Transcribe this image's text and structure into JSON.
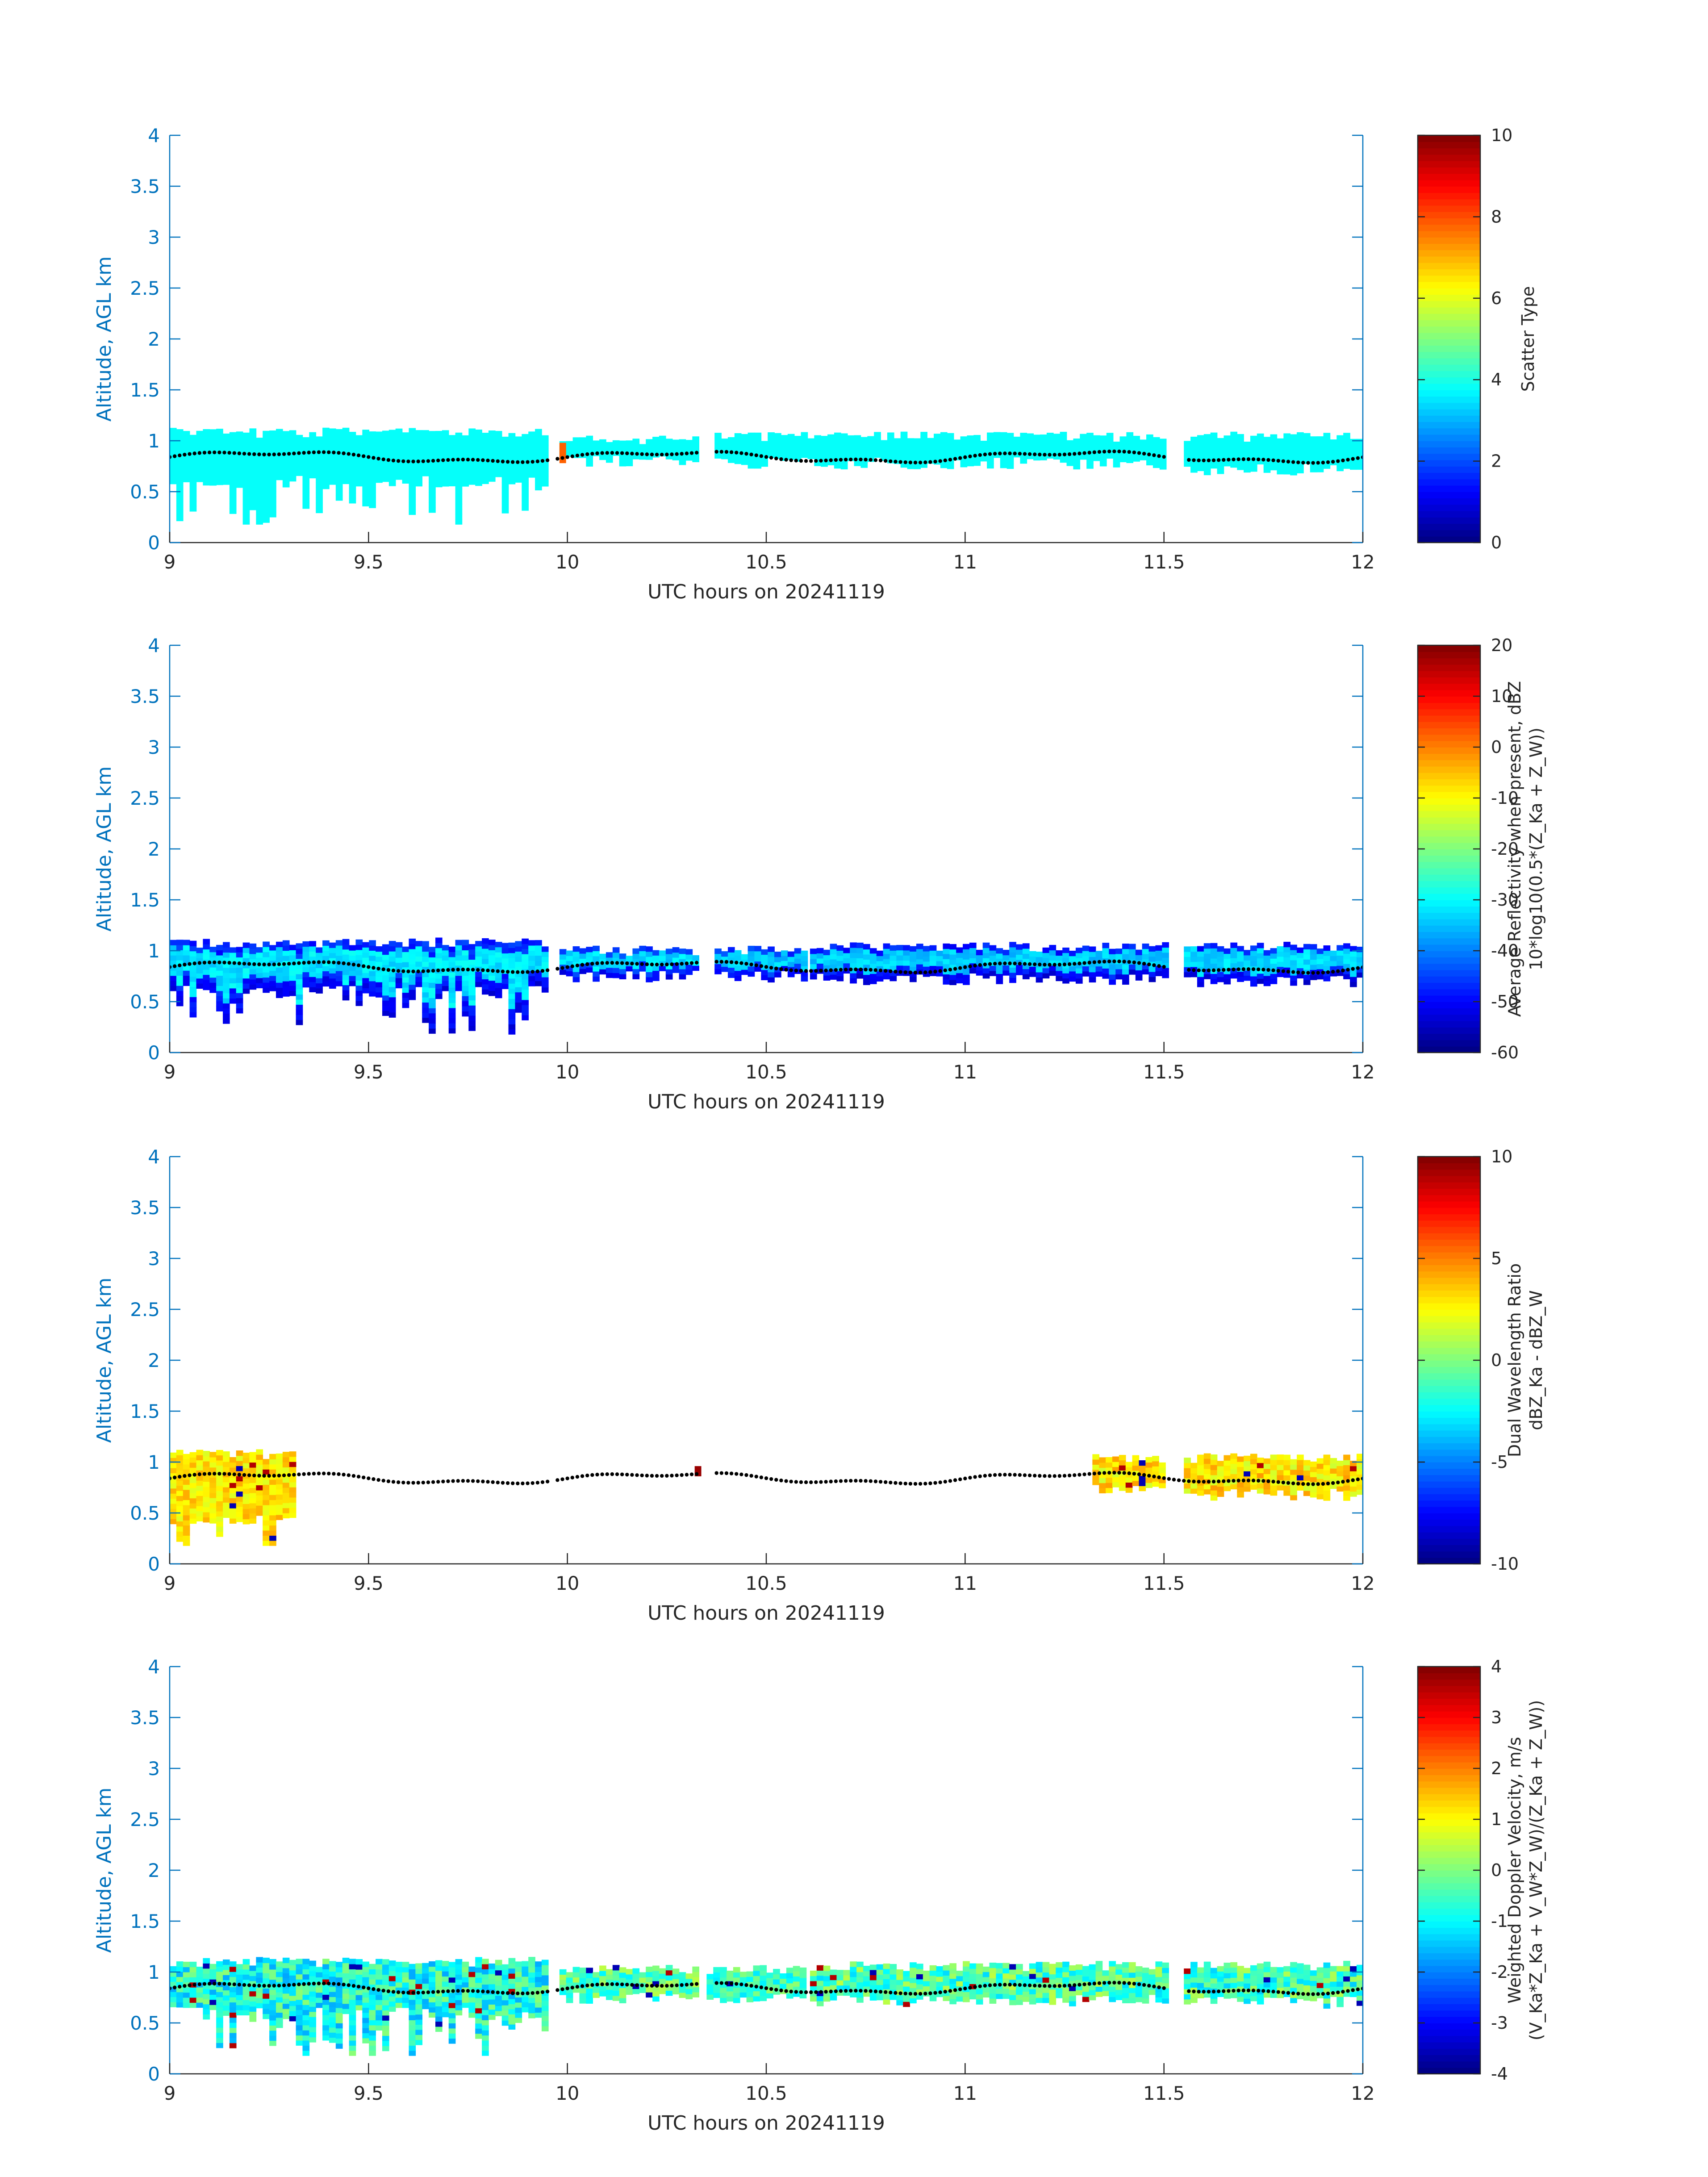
{
  "chart_data": [
    {
      "type": "heatmap",
      "xlabel": "UTC hours on 20241119",
      "ylabel": "Altitude, AGL km",
      "xlim": [
        9,
        12
      ],
      "ylim": [
        0,
        4
      ],
      "xticks": [
        "9",
        "9.5",
        "10",
        "10.5",
        "11",
        "11.5",
        "12"
      ],
      "yticks": [
        "0",
        "0.5",
        "1",
        "1.5",
        "2",
        "2.5",
        "3",
        "3.5",
        "4"
      ],
      "colorbar": {
        "label_lines": [
          "Scatter Type"
        ],
        "range": [
          0,
          10
        ],
        "ticks": [
          "0",
          "2",
          "4",
          "6",
          "8",
          "10"
        ],
        "colormap": "jet"
      },
      "echo_segments": [
        {
          "x_start": 9.0,
          "x_end": 9.94,
          "top_km": 1.08,
          "base_km": 0.6,
          "value": 3.8,
          "noise": 0,
          "deep": true
        },
        {
          "x_start": 9.98,
          "x_end": 10.33,
          "top_km": 1.0,
          "base_km": 0.8,
          "value": 3.8,
          "noise": 0,
          "deep": false
        },
        {
          "x_start": 10.37,
          "x_end": 11.5,
          "top_km": 1.04,
          "base_km": 0.78,
          "value": 3.8,
          "noise": 0,
          "deep": false
        },
        {
          "x_start": 11.55,
          "x_end": 12.0,
          "top_km": 1.04,
          "base_km": 0.72,
          "value": 3.8,
          "noise": 0,
          "deep": false
        }
      ],
      "special_cells": [
        {
          "x": 9.98,
          "y_top": 0.98,
          "y_base": 0.78,
          "value": 7.8
        }
      ],
      "cloud_top_points": {
        "x_start": 9.0,
        "x_end": 12.0,
        "gaps": [
          [
            9.95,
            9.97
          ],
          [
            10.33,
            10.37
          ],
          [
            11.51,
            11.55
          ]
        ]
      }
    },
    {
      "type": "heatmap",
      "xlabel": "UTC hours on 20241119",
      "ylabel": "Altitude, AGL km",
      "xlim": [
        9,
        12
      ],
      "ylim": [
        0,
        4
      ],
      "xticks": [
        "9",
        "9.5",
        "10",
        "10.5",
        "11",
        "11.5",
        "12"
      ],
      "yticks": [
        "0",
        "0.5",
        "1",
        "1.5",
        "2",
        "2.5",
        "3",
        "3.5",
        "4"
      ],
      "colorbar": {
        "label_lines": [
          "Average Reflectivity when present, dBZ",
          "10*log10(0.5*(Z_Ka + Z_W))"
        ],
        "range": [
          -60,
          20
        ],
        "ticks": [
          "-60",
          "-50",
          "-40",
          "-30",
          "-20",
          "-10",
          "0",
          "10",
          "20"
        ],
        "colormap": "jet"
      },
      "echo_segments": [
        {
          "x_start": 9.0,
          "x_end": 9.94,
          "top_km": 1.08,
          "base_km": 0.6,
          "value_top": -47,
          "value_core": -32,
          "value_base": -52,
          "noise": 3,
          "deep": true
        },
        {
          "x_start": 9.98,
          "x_end": 10.33,
          "top_km": 1.0,
          "base_km": 0.75,
          "value_top": -46,
          "value_core": -33,
          "value_base": -50,
          "noise": 3,
          "deep": false
        },
        {
          "x_start": 10.37,
          "x_end": 10.59,
          "top_km": 1.0,
          "base_km": 0.75,
          "value_top": -45,
          "value_core": -34,
          "value_base": -50,
          "noise": 3,
          "deep": false
        },
        {
          "x_start": 10.61,
          "x_end": 11.5,
          "top_km": 1.04,
          "base_km": 0.72,
          "value_top": -48,
          "value_core": -34,
          "value_base": -52,
          "noise": 3,
          "deep": false
        },
        {
          "x_start": 11.55,
          "x_end": 12.0,
          "top_km": 1.04,
          "base_km": 0.7,
          "value_top": -48,
          "value_core": -33,
          "value_base": -52,
          "noise": 3,
          "deep": false
        }
      ],
      "special_cells": [],
      "cloud_top_points": {
        "x_start": 9.0,
        "x_end": 12.0,
        "gaps": [
          [
            9.95,
            9.97
          ],
          [
            10.33,
            10.37
          ],
          [
            11.51,
            11.55
          ]
        ]
      }
    },
    {
      "type": "heatmap",
      "xlabel": "UTC hours on 20241119",
      "ylabel": "Altitude, AGL km",
      "xlim": [
        9,
        12
      ],
      "ylim": [
        0,
        4
      ],
      "xticks": [
        "9",
        "9.5",
        "10",
        "10.5",
        "11",
        "11.5",
        "12"
      ],
      "yticks": [
        "0",
        "0.5",
        "1",
        "1.5",
        "2",
        "2.5",
        "3",
        "3.5",
        "4"
      ],
      "colorbar": {
        "label_lines": [
          "Dual Wavelength Ratio",
          "dBZ_Ka - dBZ_W"
        ],
        "range": [
          -10,
          10
        ],
        "ticks": [
          "-10",
          "-5",
          "0",
          "5",
          "10"
        ],
        "colormap": "jet"
      },
      "echo_segments": [
        {
          "x_start": 9.0,
          "x_end": 9.31,
          "top_km": 1.08,
          "base_km": 0.45,
          "value": 3.0,
          "noise": 1.2,
          "deep": true
        },
        {
          "x_start": 11.32,
          "x_end": 11.5,
          "top_km": 1.04,
          "base_km": 0.75,
          "value": 3.0,
          "noise": 1.5,
          "deep": false
        },
        {
          "x_start": 11.55,
          "x_end": 12.0,
          "top_km": 1.04,
          "base_km": 0.68,
          "value": 3.0,
          "noise": 1.5,
          "deep": false
        }
      ],
      "special_cells": [
        {
          "x": 10.32,
          "y_top": 0.96,
          "y_base": 0.86,
          "value": 9.5
        }
      ],
      "cloud_top_points": {
        "x_start": 9.0,
        "x_end": 12.0,
        "gaps": [
          [
            9.95,
            9.97
          ],
          [
            10.33,
            10.37
          ]
        ]
      }
    },
    {
      "type": "heatmap",
      "xlabel": "UTC hours on 20241119",
      "ylabel": "Altitude, AGL km",
      "xlim": [
        9,
        12
      ],
      "ylim": [
        0,
        4
      ],
      "xticks": [
        "9",
        "9.5",
        "10",
        "10.5",
        "11",
        "11.5",
        "12"
      ],
      "yticks": [
        "0",
        "0.5",
        "1",
        "1.5",
        "2",
        "2.5",
        "3",
        "3.5",
        "4"
      ],
      "colorbar": {
        "label_lines": [
          "Weighted Doppler Velocity, m/s",
          "(V_Ka*Z_Ka + V_W*Z_W)/(Z_Ka + Z_W))"
        ],
        "range": [
          -4,
          4
        ],
        "ticks": [
          "-4",
          "-3",
          "-2",
          "-1",
          "0",
          "1",
          "2",
          "3",
          "4"
        ],
        "colormap": "jet"
      },
      "echo_segments": [
        {
          "x_start": 9.0,
          "x_end": 9.94,
          "top_km": 1.1,
          "base_km": 0.6,
          "value": -0.8,
          "noise": 0.9,
          "deep": true
        },
        {
          "x_start": 9.98,
          "x_end": 10.33,
          "top_km": 1.02,
          "base_km": 0.75,
          "value": -0.3,
          "noise": 0.8,
          "deep": false
        },
        {
          "x_start": 10.35,
          "x_end": 10.59,
          "top_km": 1.02,
          "base_km": 0.75,
          "value": -0.5,
          "noise": 0.7,
          "deep": false
        },
        {
          "x_start": 10.61,
          "x_end": 11.5,
          "top_km": 1.06,
          "base_km": 0.72,
          "value": -0.4,
          "noise": 0.9,
          "deep": false
        },
        {
          "x_start": 11.55,
          "x_end": 12.0,
          "top_km": 1.06,
          "base_km": 0.7,
          "value": -0.5,
          "noise": 0.9,
          "deep": false
        }
      ],
      "special_cells": [],
      "cloud_top_points": {
        "x_start": 9.0,
        "x_end": 12.0,
        "gaps": [
          [
            9.95,
            9.97
          ],
          [
            10.33,
            10.37
          ],
          [
            11.51,
            11.55
          ]
        ]
      }
    }
  ]
}
